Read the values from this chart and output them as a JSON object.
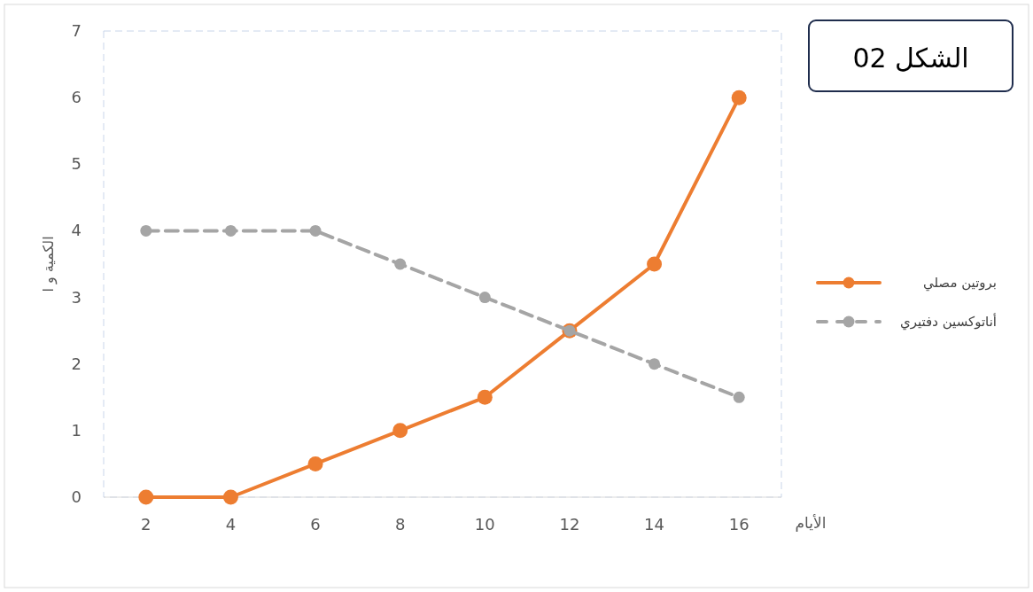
{
  "chart_data": {
    "type": "line",
    "title": "الشكل 02",
    "xlabel": "الأيام",
    "ylabel": "الكمية و ا",
    "categories": [
      "2",
      "4",
      "6",
      "8",
      "10",
      "12",
      "14",
      "16"
    ],
    "series": [
      {
        "name": "بروتين مصلي",
        "color": "#ed7d31",
        "line_style": "solid",
        "values": [
          0,
          0,
          0.5,
          1,
          1.5,
          2.5,
          3.5,
          6
        ]
      },
      {
        "name": "أناتوكسين دفتيري",
        "color": "#a5a5a5",
        "line_style": "dashed",
        "values": [
          4,
          4,
          4,
          3.5,
          3,
          2.5,
          2,
          1.5
        ]
      }
    ],
    "ylim": [
      0,
      7
    ],
    "yticks": [
      0,
      1,
      2,
      3,
      4,
      5,
      6,
      7
    ],
    "grid": false,
    "legend": "right",
    "marker": "circle"
  }
}
